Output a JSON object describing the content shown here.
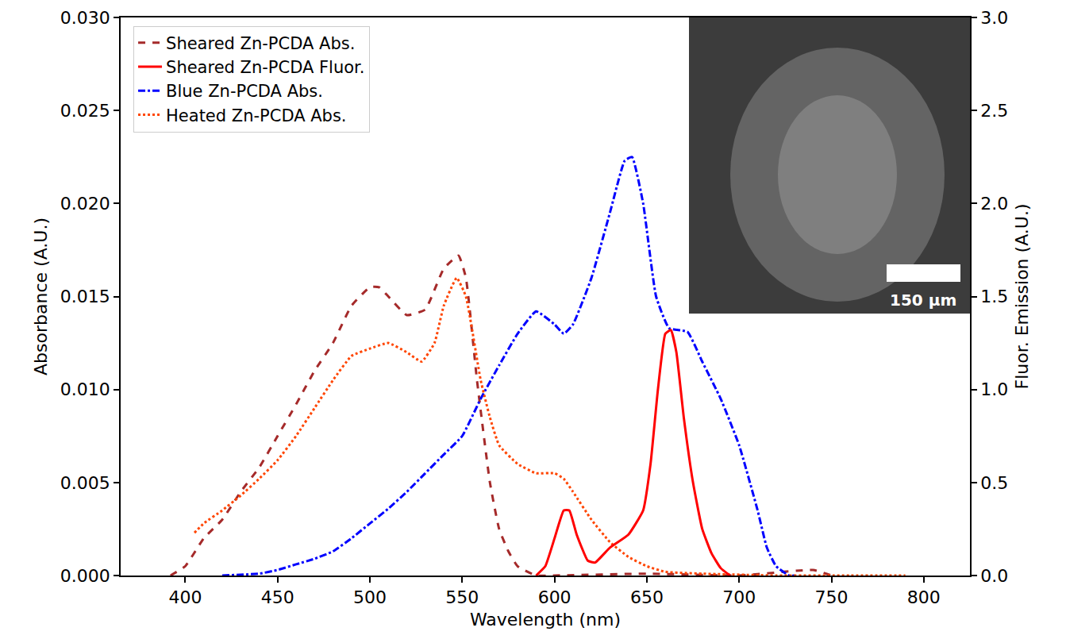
{
  "chart_data": {
    "type": "line",
    "x_label": "Wavelength (nm)",
    "y_label": "Absorbance (A.U.)",
    "y2_label": "Fluor. Emission (A.U.)",
    "xlim": [
      365,
      825
    ],
    "xticks": [
      400,
      450,
      500,
      550,
      600,
      650,
      700,
      750,
      800
    ],
    "ylim": [
      0,
      0.03
    ],
    "yticks": [
      {
        "value": 0,
        "label": "0.000"
      },
      {
        "value": 0.005,
        "label": "0.005"
      },
      {
        "value": 0.01,
        "label": "0.010"
      },
      {
        "value": 0.015,
        "label": "0.015"
      },
      {
        "value": 0.02,
        "label": "0.020"
      },
      {
        "value": 0.025,
        "label": "0.025"
      },
      {
        "value": 0.03,
        "label": "0.030"
      }
    ],
    "y2lim": [
      0,
      3
    ],
    "y2ticks": [
      {
        "value": 0,
        "label": "0.0"
      },
      0.5,
      {
        "value": 1,
        "label": "1.0"
      },
      1.5,
      {
        "value": 2,
        "label": "2.0"
      },
      2.5,
      {
        "value": 3,
        "label": "3.0"
      }
    ],
    "legend": "upper left",
    "grid": false,
    "series": [
      {
        "name": "Sheared Zn-PCDA Abs.",
        "color": "#a52a2a",
        "line_style": "dashed",
        "x": [
          392,
          400,
          410,
          420,
          430,
          440,
          450,
          460,
          470,
          480,
          490,
          500,
          505,
          510,
          520,
          530,
          540,
          548,
          552,
          558,
          565,
          570,
          575,
          580,
          590,
          600,
          650,
          700,
          740,
          750
        ],
        "values": [
          0,
          0.0005,
          0.002,
          0.003,
          0.0045,
          0.0058,
          0.0075,
          0.0092,
          0.011,
          0.0125,
          0.0145,
          0.0155,
          0.0155,
          0.015,
          0.014,
          0.0143,
          0.0165,
          0.0172,
          0.016,
          0.0105,
          0.005,
          0.0025,
          0.0013,
          0.0005,
          0,
          0,
          0.0001,
          0,
          0.0003,
          0
        ]
      },
      {
        "name": "Sheared Zn-PCDA Fluor.",
        "color": "#ff0000",
        "line_style": "solid",
        "axis": "y2",
        "x": [
          590,
          595,
          600,
          605,
          608,
          612,
          618,
          622,
          630,
          640,
          648,
          652,
          656,
          660,
          663,
          666,
          670,
          675,
          680,
          685,
          690,
          695
        ],
        "values": [
          0,
          0.05,
          0.2,
          0.35,
          0.35,
          0.22,
          0.08,
          0.07,
          0.15,
          0.22,
          0.35,
          0.6,
          1.0,
          1.3,
          1.32,
          1.2,
          0.85,
          0.5,
          0.25,
          0.12,
          0.04,
          0
        ]
      },
      {
        "name": "Blue Zn-PCDA Abs.",
        "color": "#0000ff",
        "line_style": "dashdot",
        "x": [
          420,
          440,
          450,
          460,
          470,
          480,
          490,
          500,
          510,
          520,
          530,
          540,
          550,
          560,
          570,
          580,
          590,
          600,
          605,
          610,
          620,
          630,
          638,
          642,
          648,
          655,
          662,
          672,
          680,
          690,
          700,
          710,
          715,
          720,
          727,
          730
        ],
        "values": [
          0,
          0.0001,
          0.0003,
          0.0006,
          0.0009,
          0.0013,
          0.002,
          0.0028,
          0.0036,
          0.0045,
          0.0055,
          0.0065,
          0.0075,
          0.0095,
          0.0113,
          0.013,
          0.0142,
          0.0135,
          0.013,
          0.0135,
          0.016,
          0.0195,
          0.0223,
          0.0225,
          0.02,
          0.015,
          0.0133,
          0.0131,
          0.0115,
          0.0095,
          0.007,
          0.0035,
          0.0015,
          0.0005,
          0,
          0
        ]
      },
      {
        "name": "Heated Zn-PCDA Abs.",
        "color": "#ff4500",
        "line_style": "dotted",
        "x": [
          405,
          410,
          420,
          430,
          440,
          450,
          460,
          470,
          480,
          490,
          500,
          510,
          520,
          528,
          535,
          540,
          547,
          552,
          560,
          565,
          570,
          580,
          590,
          600,
          605,
          610,
          620,
          630,
          640,
          650,
          660,
          680,
          720,
          760,
          790
        ],
        "values": [
          0.0023,
          0.0028,
          0.0035,
          0.0043,
          0.0052,
          0.0062,
          0.0075,
          0.009,
          0.0105,
          0.0118,
          0.0122,
          0.0125,
          0.012,
          0.0115,
          0.0125,
          0.0145,
          0.016,
          0.015,
          0.0105,
          0.0085,
          0.007,
          0.006,
          0.0055,
          0.0055,
          0.0052,
          0.0045,
          0.003,
          0.0018,
          0.001,
          0.0005,
          0.0002,
          0.0001,
          0,
          0,
          0
        ]
      }
    ],
    "annotations": [
      {
        "text": "150 µm"
      }
    ]
  }
}
